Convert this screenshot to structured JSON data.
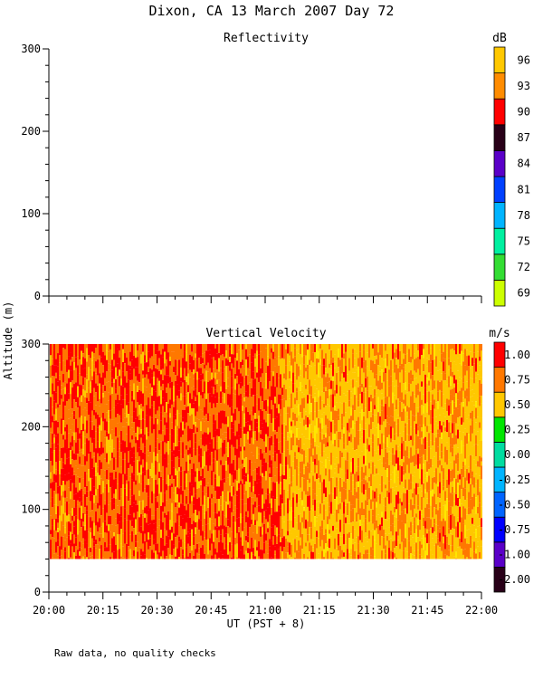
{
  "figure": {
    "title": "Dixon, CA 13 March 2007  Day  72",
    "ylabel": "Altitude (m)",
    "xlabel": "UT  (PST + 8)",
    "note": "Raw data, no quality checks"
  },
  "chart_data": [
    {
      "type": "heatmap",
      "title": "Reflectivity",
      "xlabel": "UT  (PST + 8)",
      "ylabel": "Altitude (m)",
      "x_ticks": [
        "20:00",
        "20:15",
        "20:30",
        "20:45",
        "21:00",
        "21:15",
        "21:30",
        "21:45",
        "22:00"
      ],
      "y_ticks": [
        "0",
        "100",
        "200",
        "300"
      ],
      "ylim": [
        0,
        300
      ],
      "xlim": [
        "20:00",
        "22:00"
      ],
      "data": "none shown",
      "colorbar": {
        "unit": "dB",
        "levels": [
          "69",
          "72",
          "75",
          "78",
          "81",
          "84",
          "87",
          "90",
          "93",
          "96"
        ],
        "colors": [
          "#ccff00",
          "#33dd33",
          "#00f0a0",
          "#00b4ff",
          "#0040ff",
          "#5a00c8",
          "#280018",
          "#ff0000",
          "#ff8c00",
          "#ffc800"
        ]
      }
    },
    {
      "type": "heatmap",
      "title": "Vertical Velocity",
      "xlabel": "UT  (PST + 8)",
      "ylabel": "Altitude (m)",
      "x_ticks": [
        "20:00",
        "20:15",
        "20:30",
        "20:45",
        "21:00",
        "21:15",
        "21:30",
        "21:45",
        "22:00"
      ],
      "y_ticks": [
        "0",
        "100",
        "200",
        "300"
      ],
      "ylim": [
        0,
        300
      ],
      "xlim": [
        "20:00",
        "22:00"
      ],
      "data_altitude_range_m": [
        40,
        300
      ],
      "dominant_level_before_2105": "0.75",
      "dominant_level_after_2105": "0.50",
      "colorbar": {
        "unit": "m/s",
        "levels": [
          "-2.00",
          "-1.00",
          "-0.75",
          "-0.50",
          "-0.25",
          "0.00",
          "0.25",
          "0.50",
          "0.75",
          "1.00"
        ],
        "colors": [
          "#280018",
          "#5a00c8",
          "#0000ff",
          "#0064ff",
          "#00b4ff",
          "#00dca0",
          "#00e600",
          "#ffc800",
          "#ff7800",
          "#ff0000"
        ]
      }
    }
  ]
}
